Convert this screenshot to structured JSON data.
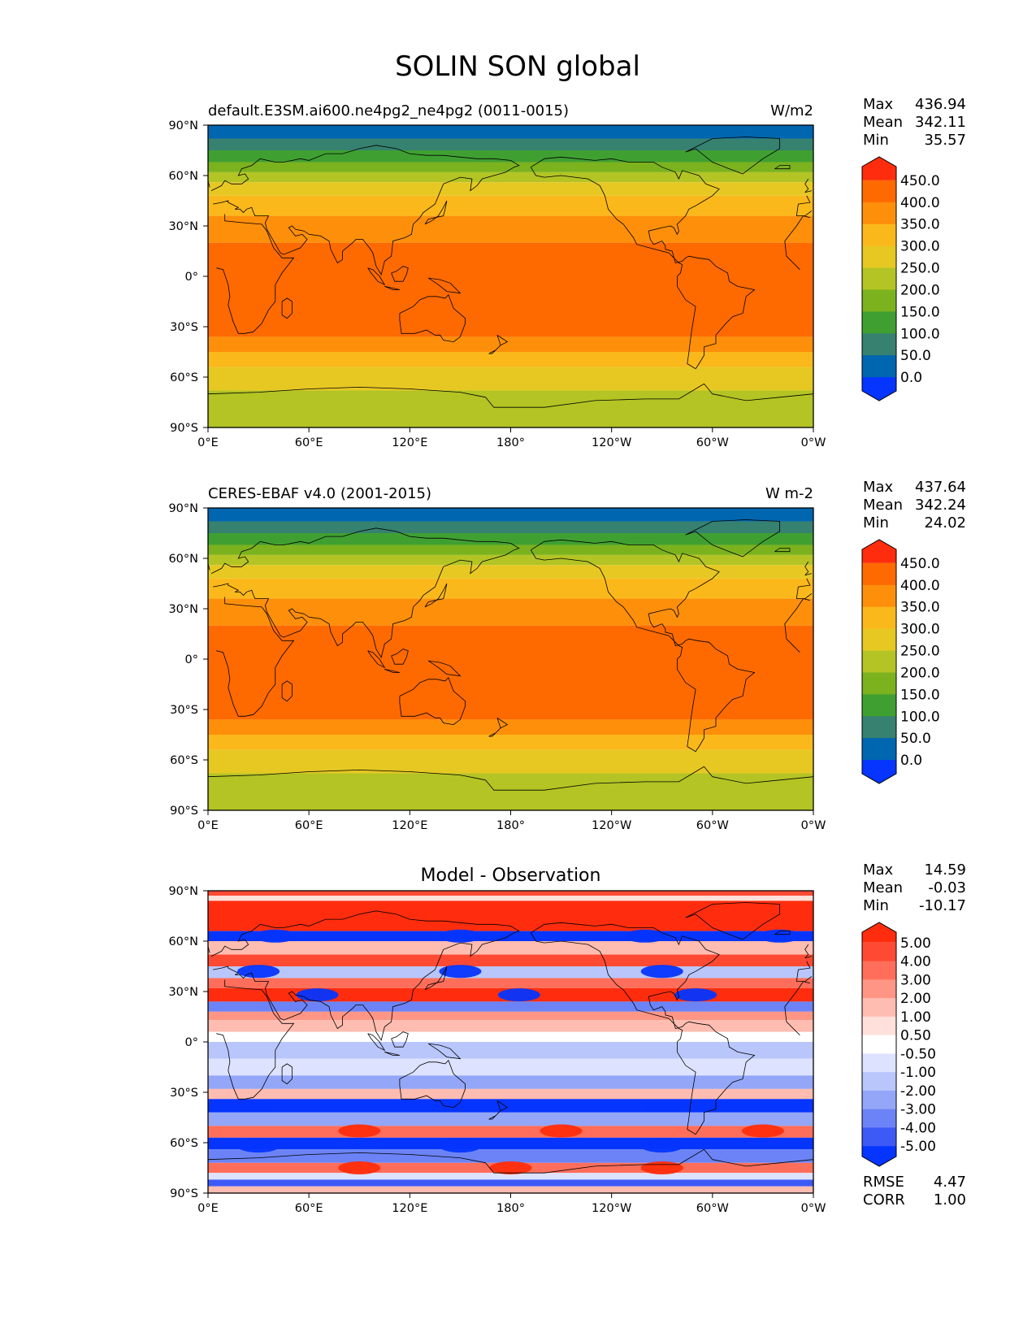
{
  "title": "SOLIN SON global",
  "lat_ticks": [
    "90°N",
    "60°N",
    "30°N",
    "0°",
    "30°S",
    "60°S",
    "90°S"
  ],
  "lon_ticks": [
    "0°E",
    "60°E",
    "120°E",
    "180°",
    "120°W",
    "60°W",
    "0°W"
  ],
  "chart_data": [
    {
      "type": "heatmap",
      "left_title": "default.E3SM.ai600.ne4pg2_ne4pg2 (0011-0015)",
      "units": "W/m2",
      "stats": {
        "max_label": "Max",
        "max": "436.94",
        "mean_label": "Mean",
        "mean": "342.11",
        "min_label": "Min",
        "min": "35.57"
      },
      "colorbar": {
        "levels": [
          "450.0",
          "400.0",
          "350.0",
          "300.0",
          "250.0",
          "200.0",
          "150.0",
          "100.0",
          "50.0",
          "0.0"
        ],
        "colors": [
          "#ff2d0d",
          "#ff6a00",
          "#fe8f0a",
          "#fbb81b",
          "#e7c823",
          "#b3c424",
          "#7bb21e",
          "#3fa031",
          "#368170",
          "#0066b0",
          "#0535fe"
        ]
      },
      "bands": [
        {
          "lat_from": 90,
          "lat_to": 82,
          "color": "#0066b0"
        },
        {
          "lat_from": 82,
          "lat_to": 75,
          "color": "#368170"
        },
        {
          "lat_from": 75,
          "lat_to": 68,
          "color": "#3fa031"
        },
        {
          "lat_from": 68,
          "lat_to": 62,
          "color": "#7bb21e"
        },
        {
          "lat_from": 62,
          "lat_to": 56,
          "color": "#b3c424"
        },
        {
          "lat_from": 56,
          "lat_to": 48,
          "color": "#e7c823"
        },
        {
          "lat_from": 48,
          "lat_to": 36,
          "color": "#fbb81b"
        },
        {
          "lat_from": 36,
          "lat_to": 20,
          "color": "#fe8f0a"
        },
        {
          "lat_from": 20,
          "lat_to": -36,
          "color": "#ff6a00"
        },
        {
          "lat_from": -36,
          "lat_to": -45,
          "color": "#fe8f0a"
        },
        {
          "lat_from": -45,
          "lat_to": -54,
          "color": "#fbb81b"
        },
        {
          "lat_from": -54,
          "lat_to": -68,
          "color": "#e7c823"
        },
        {
          "lat_from": -68,
          "lat_to": -90,
          "color": "#b3c424"
        }
      ]
    },
    {
      "type": "heatmap",
      "left_title": "CERES-EBAF v4.0 (2001-2015)",
      "units": "W m-2",
      "stats": {
        "max_label": "Max",
        "max": "437.64",
        "mean_label": "Mean",
        "mean": "342.24",
        "min_label": "Min",
        "min": "24.02"
      },
      "colorbar": {
        "levels": [
          "450.0",
          "400.0",
          "350.0",
          "300.0",
          "250.0",
          "200.0",
          "150.0",
          "100.0",
          "50.0",
          "0.0"
        ],
        "colors": [
          "#ff2d0d",
          "#ff6a00",
          "#fe8f0a",
          "#fbb81b",
          "#e7c823",
          "#b3c424",
          "#7bb21e",
          "#3fa031",
          "#368170",
          "#0066b0",
          "#0535fe"
        ]
      },
      "bands": [
        {
          "lat_from": 90,
          "lat_to": 82,
          "color": "#0066b0"
        },
        {
          "lat_from": 82,
          "lat_to": 75,
          "color": "#368170"
        },
        {
          "lat_from": 75,
          "lat_to": 68,
          "color": "#3fa031"
        },
        {
          "lat_from": 68,
          "lat_to": 62,
          "color": "#7bb21e"
        },
        {
          "lat_from": 62,
          "lat_to": 56,
          "color": "#b3c424"
        },
        {
          "lat_from": 56,
          "lat_to": 48,
          "color": "#e7c823"
        },
        {
          "lat_from": 48,
          "lat_to": 36,
          "color": "#fbb81b"
        },
        {
          "lat_from": 36,
          "lat_to": 20,
          "color": "#fe8f0a"
        },
        {
          "lat_from": 20,
          "lat_to": -36,
          "color": "#ff6a00"
        },
        {
          "lat_from": -36,
          "lat_to": -45,
          "color": "#fe8f0a"
        },
        {
          "lat_from": -45,
          "lat_to": -54,
          "color": "#fbb81b"
        },
        {
          "lat_from": -54,
          "lat_to": -68,
          "color": "#e7c823"
        },
        {
          "lat_from": -68,
          "lat_to": -90,
          "color": "#b3c424"
        }
      ]
    },
    {
      "type": "heatmap",
      "center_title": "Model - Observation",
      "stats": {
        "max_label": "Max",
        "max": "14.59",
        "mean_label": "Mean",
        "mean": "-0.03",
        "min_label": "Min",
        "min": "-10.17"
      },
      "colorbar": {
        "levels": [
          "5.00",
          "4.00",
          "3.00",
          "2.00",
          "1.00",
          "0.50",
          "-0.50",
          "-1.00",
          "-2.00",
          "-3.00",
          "-4.00",
          "-5.00"
        ],
        "colors": [
          "#ff2d0d",
          "#ff4a33",
          "#ff6e5a",
          "#ff9685",
          "#ffbcb0",
          "#ffe0da",
          "#ffffff",
          "#dde3ff",
          "#b9c6fb",
          "#93a6f8",
          "#6b83f6",
          "#3d5af6",
          "#0535fe"
        ]
      },
      "bands": [
        {
          "lat_from": 90,
          "lat_to": 87,
          "color": "#ff4a33"
        },
        {
          "lat_from": 87,
          "lat_to": 84,
          "color": "#ffe0da"
        },
        {
          "lat_from": 84,
          "lat_to": 66,
          "color": "#ff2d0d"
        },
        {
          "lat_from": 66,
          "lat_to": 60,
          "color": "#0535fe"
        },
        {
          "lat_from": 60,
          "lat_to": 52,
          "color": "#ffbcb0"
        },
        {
          "lat_from": 52,
          "lat_to": 45,
          "color": "#ff4a33"
        },
        {
          "lat_from": 45,
          "lat_to": 38,
          "color": "#b9c6fb"
        },
        {
          "lat_from": 38,
          "lat_to": 32,
          "color": "#ff6e5a"
        },
        {
          "lat_from": 32,
          "lat_to": 24,
          "color": "#ff2d0d"
        },
        {
          "lat_from": 24,
          "lat_to": 18,
          "color": "#6b83f6"
        },
        {
          "lat_from": 18,
          "lat_to": 13,
          "color": "#ff9685"
        },
        {
          "lat_from": 13,
          "lat_to": 6,
          "color": "#ffbcb0"
        },
        {
          "lat_from": 6,
          "lat_to": 0,
          "color": "#ffffff"
        },
        {
          "lat_from": 0,
          "lat_to": -10,
          "color": "#b9c6fb"
        },
        {
          "lat_from": -10,
          "lat_to": -20,
          "color": "#dde3ff"
        },
        {
          "lat_from": -20,
          "lat_to": -28,
          "color": "#93a6f8"
        },
        {
          "lat_from": -28,
          "lat_to": -34,
          "color": "#ffbcb0"
        },
        {
          "lat_from": -34,
          "lat_to": -42,
          "color": "#0535fe"
        },
        {
          "lat_from": -42,
          "lat_to": -50,
          "color": "#93a6f8"
        },
        {
          "lat_from": -50,
          "lat_to": -57,
          "color": "#ff6e5a"
        },
        {
          "lat_from": -57,
          "lat_to": -64,
          "color": "#0535fe"
        },
        {
          "lat_from": -64,
          "lat_to": -72,
          "color": "#6b83f6"
        },
        {
          "lat_from": -72,
          "lat_to": -78,
          "color": "#ff6e5a"
        },
        {
          "lat_from": -78,
          "lat_to": -82,
          "color": "#dde3ff"
        },
        {
          "lat_from": -82,
          "lat_to": -86,
          "color": "#3d5af6"
        },
        {
          "lat_from": -86,
          "lat_to": -90,
          "color": "#ffbcb0"
        }
      ],
      "blobs": [
        {
          "lon": 40,
          "lat": 63,
          "color": "#0535fe"
        },
        {
          "lon": 150,
          "lat": 63,
          "color": "#0535fe"
        },
        {
          "lon": 260,
          "lat": 63,
          "color": "#0535fe"
        },
        {
          "lon": 340,
          "lat": 63,
          "color": "#0535fe"
        },
        {
          "lon": 65,
          "lat": 28,
          "color": "#0535fe"
        },
        {
          "lon": 185,
          "lat": 28,
          "color": "#0535fe"
        },
        {
          "lon": 290,
          "lat": 28,
          "color": "#0535fe"
        },
        {
          "lon": 30,
          "lat": 42,
          "color": "#0535fe"
        },
        {
          "lon": 150,
          "lat": 42,
          "color": "#0535fe"
        },
        {
          "lon": 270,
          "lat": 42,
          "color": "#0535fe"
        },
        {
          "lon": 30,
          "lat": -38,
          "color": "#0535fe"
        },
        {
          "lon": 150,
          "lat": -38,
          "color": "#0535fe"
        },
        {
          "lon": 270,
          "lat": -38,
          "color": "#0535fe"
        },
        {
          "lon": 30,
          "lat": -62,
          "color": "#0535fe"
        },
        {
          "lon": 150,
          "lat": -62,
          "color": "#0535fe"
        },
        {
          "lon": 270,
          "lat": -62,
          "color": "#0535fe"
        },
        {
          "lon": 90,
          "lat": -53,
          "color": "#ff2d0d"
        },
        {
          "lon": 210,
          "lat": -53,
          "color": "#ff2d0d"
        },
        {
          "lon": 330,
          "lat": -53,
          "color": "#ff2d0d"
        },
        {
          "lon": 90,
          "lat": -75,
          "color": "#ff2d0d"
        },
        {
          "lon": 180,
          "lat": -75,
          "color": "#ff2d0d"
        },
        {
          "lon": 270,
          "lat": -75,
          "color": "#ff2d0d"
        }
      ],
      "footer": {
        "rmse_label": "RMSE",
        "rmse": "4.47",
        "corr_label": "CORR",
        "corr": "1.00"
      }
    }
  ]
}
